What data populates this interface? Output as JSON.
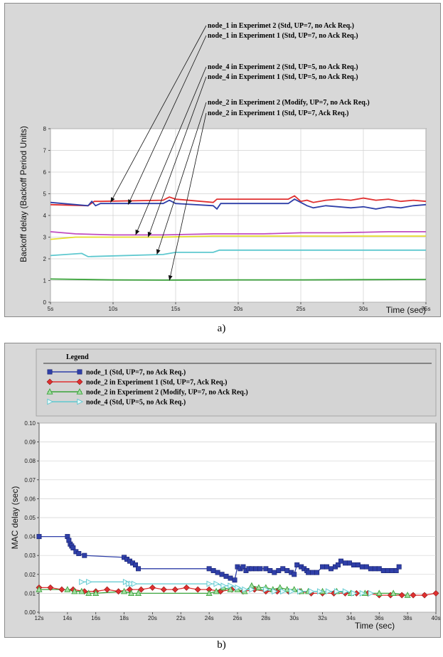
{
  "captions": {
    "a": "a)",
    "b": "b)"
  },
  "colors": {
    "node1": "#2f3fa8",
    "node2_exp1": "#e03030",
    "node2_exp2": "#3aa33a",
    "node4": "#5ec8cf",
    "magenta": "#c04cc0",
    "yellow": "#e6dc2a",
    "green_line": "#3aa33a"
  },
  "chart_data": [
    {
      "type": "line",
      "xlabel": "Time  (sec)",
      "ylabel": "Backoff delay (Backoff Period Units)",
      "xlim": [
        5,
        35
      ],
      "ylim": [
        0,
        8
      ],
      "xticks": [
        "5s",
        "10s",
        "15s",
        "20s",
        "25s",
        "30s",
        "35s"
      ],
      "yticks": [
        "0",
        "1",
        "2",
        "3",
        "4",
        "5",
        "6",
        "7",
        "8"
      ],
      "grid": true,
      "annotations": [
        {
          "text": "node_1 in Experimet 2 (Std, UP=7, no Ack Req.)",
          "target": [
            9.8,
            4.6
          ]
        },
        {
          "text": "node_1 in Experiment 1 (Std, UP=7, no Ack Req.)",
          "target": [
            11.2,
            4.5
          ]
        },
        {
          "text": "node_4 in Experiment 2 (Std, UP=5, no Ack Req.)",
          "target": [
            11.8,
            3.1
          ]
        },
        {
          "text": "node_4 in Experiment 1 (Std, UP=5, no Ack Req.)",
          "target": [
            12.8,
            3.0
          ]
        },
        {
          "text": "node_2 in Experiment 2 (Modify, UP=7, no Ack Req.)",
          "target": [
            13.5,
            2.2
          ]
        },
        {
          "text": "node_2 in Experiment 1 (Std, UP=7, Ack Req.)",
          "target": [
            14.5,
            1.0
          ]
        }
      ],
      "series": [
        {
          "color": "#e03030",
          "x": [
            5,
            8,
            8.5,
            9,
            14,
            14.5,
            15,
            18,
            18.3,
            24,
            24.5,
            25,
            25.5,
            26,
            27,
            28,
            29,
            30,
            31,
            32,
            33,
            34,
            35
          ],
          "y": [
            4.5,
            4.45,
            4.65,
            4.65,
            4.7,
            4.85,
            4.75,
            4.6,
            4.75,
            4.75,
            4.9,
            4.65,
            4.7,
            4.6,
            4.7,
            4.75,
            4.7,
            4.8,
            4.7,
            4.75,
            4.65,
            4.7,
            4.65
          ]
        },
        {
          "color": "#2f3fa8",
          "x": [
            5,
            8,
            8.3,
            8.6,
            9,
            14,
            14.5,
            15,
            18,
            18.3,
            18.6,
            24,
            24.5,
            25,
            25.5,
            26,
            27,
            28,
            29,
            30,
            31,
            32,
            33,
            34,
            35
          ],
          "y": [
            4.6,
            4.45,
            4.65,
            4.45,
            4.55,
            4.55,
            4.7,
            4.55,
            4.45,
            4.3,
            4.55,
            4.55,
            4.75,
            4.6,
            4.45,
            4.35,
            4.45,
            4.4,
            4.35,
            4.4,
            4.3,
            4.4,
            4.35,
            4.45,
            4.5
          ]
        },
        {
          "color": "#c04cc0",
          "x": [
            5,
            7,
            10,
            14,
            18,
            22,
            25,
            28,
            32,
            35
          ],
          "y": [
            3.25,
            3.15,
            3.1,
            3.1,
            3.15,
            3.15,
            3.2,
            3.2,
            3.25,
            3.25
          ]
        },
        {
          "color": "#e6dc2a",
          "x": [
            5,
            7,
            10,
            14,
            18,
            22,
            25,
            30,
            35
          ],
          "y": [
            2.9,
            3.0,
            3.0,
            3.0,
            3.05,
            3.05,
            3.05,
            3.05,
            3.05
          ]
        },
        {
          "color": "#5ec8cf",
          "x": [
            5,
            7.5,
            8,
            14,
            15,
            18,
            18.5,
            35
          ],
          "y": [
            2.15,
            2.25,
            2.1,
            2.2,
            2.3,
            2.3,
            2.4,
            2.4
          ]
        },
        {
          "color": "#3aa33a",
          "x": [
            5,
            10,
            14,
            20,
            25,
            30,
            35
          ],
          "y": [
            1.07,
            1.03,
            1.02,
            1.03,
            1.03,
            1.04,
            1.05
          ]
        }
      ]
    },
    {
      "type": "line",
      "xlabel": "Time  (sec)",
      "ylabel": "MAC delay (sec)",
      "xlim": [
        12,
        40
      ],
      "ylim": [
        0,
        0.1
      ],
      "xticks": [
        "12s",
        "14s",
        "16s",
        "18s",
        "20s",
        "22s",
        "24s",
        "26s",
        "28s",
        "30s",
        "32s",
        "34s",
        "36s",
        "38s",
        "40s"
      ],
      "yticks": [
        "0.00",
        "0.01",
        "0.02",
        "0.03",
        "0.04",
        "0.05",
        "0.06",
        "0.07",
        "0.08",
        "0.09",
        "0.10"
      ],
      "grid": true,
      "legend": {
        "title": "Legend",
        "placement": "top",
        "entries": [
          "node_1 (Std, UP=7, no Ack Req.)",
          "node_2 in Experiment 1 (Std, UP=7, Ack Req.)",
          "node_2 in Experiment 2 (Modify, UP=7, no Ack Req.)",
          "node_4 (Std, UP=5, no Ack Req.)"
        ]
      },
      "series": [
        {
          "name": "node_1 (Std, UP=7, no Ack Req.)",
          "color": "#2f3fa8",
          "marker": "square",
          "x": [
            12,
            14,
            14.1,
            14.2,
            14.3,
            14.4,
            14.6,
            14.8,
            15.2,
            18,
            18.2,
            18.4,
            18.6,
            18.8,
            19,
            24,
            24.3,
            24.6,
            24.9,
            25.2,
            25.5,
            25.8,
            26,
            26.2,
            26.4,
            26.6,
            26.8,
            27,
            27.3,
            27.6,
            28,
            28.3,
            28.6,
            28.9,
            29.2,
            29.5,
            29.8,
            30,
            30.2,
            30.5,
            30.7,
            30.9,
            31,
            31.3,
            31.6,
            32,
            32.3,
            32.6,
            32.9,
            33.1,
            33.3,
            33.6,
            33.9,
            34.2,
            34.5,
            34.8,
            35.1,
            35.4,
            35.7,
            36,
            36.3,
            36.6,
            36.9,
            37.2,
            37.4
          ],
          "y": [
            0.04,
            0.04,
            0.038,
            0.036,
            0.035,
            0.034,
            0.032,
            0.031,
            0.03,
            0.029,
            0.028,
            0.027,
            0.026,
            0.025,
            0.023,
            0.023,
            0.022,
            0.021,
            0.02,
            0.019,
            0.018,
            0.017,
            0.024,
            0.023,
            0.024,
            0.022,
            0.023,
            0.023,
            0.023,
            0.023,
            0.023,
            0.022,
            0.021,
            0.022,
            0.023,
            0.022,
            0.021,
            0.02,
            0.025,
            0.024,
            0.023,
            0.022,
            0.021,
            0.021,
            0.021,
            0.024,
            0.024,
            0.023,
            0.024,
            0.025,
            0.027,
            0.026,
            0.026,
            0.025,
            0.025,
            0.024,
            0.024,
            0.023,
            0.023,
            0.023,
            0.022,
            0.022,
            0.022,
            0.022,
            0.024
          ]
        },
        {
          "name": "node_2 in Experiment 1 (Std, UP=7, Ack Req.)",
          "color": "#e03030",
          "marker": "diamond",
          "x": [
            12,
            12.8,
            13.6,
            14.4,
            15.2,
            16,
            16.8,
            17.6,
            18.4,
            19.2,
            20,
            20.8,
            21.6,
            22.4,
            23.2,
            24,
            24.8,
            25.6,
            26.4,
            27.2,
            28,
            28.8,
            29.6,
            30.4,
            31.2,
            32,
            32.8,
            33.6,
            34.4,
            35.2,
            36,
            36.8,
            37.6,
            38.4,
            39.2,
            40
          ],
          "y": [
            0.013,
            0.013,
            0.012,
            0.012,
            0.011,
            0.011,
            0.012,
            0.011,
            0.012,
            0.012,
            0.013,
            0.012,
            0.012,
            0.013,
            0.012,
            0.012,
            0.011,
            0.012,
            0.011,
            0.012,
            0.011,
            0.011,
            0.011,
            0.011,
            0.01,
            0.01,
            0.01,
            0.01,
            0.01,
            0.01,
            0.009,
            0.009,
            0.009,
            0.009,
            0.009,
            0.01
          ]
        },
        {
          "name": "node_2 in Experiment 2 (Modify, UP=7, no Ack Req.)",
          "color": "#3aa33a",
          "marker": "triangle-up",
          "x": [
            12,
            14,
            14.5,
            15,
            15.5,
            16,
            18,
            18.5,
            19,
            24,
            24.5,
            25,
            25.5,
            26,
            26.5,
            27,
            27.5,
            28,
            28.5,
            29,
            29.5,
            30,
            30.5,
            31,
            32,
            33,
            34,
            35,
            36,
            37,
            38
          ],
          "y": [
            0.012,
            0.012,
            0.011,
            0.011,
            0.01,
            0.01,
            0.011,
            0.01,
            0.01,
            0.01,
            0.011,
            0.013,
            0.012,
            0.012,
            0.011,
            0.014,
            0.013,
            0.013,
            0.012,
            0.013,
            0.012,
            0.012,
            0.011,
            0.011,
            0.011,
            0.011,
            0.01,
            0.01,
            0.01,
            0.01,
            0.009
          ]
        },
        {
          "name": "node_4 (Std, UP=5, no Ack Req.)",
          "color": "#5ec8cf",
          "marker": "triangle-right",
          "x": [
            15,
            15.5,
            18.1,
            18.3,
            18.5,
            18.7,
            24,
            24.5,
            25,
            25.5,
            26,
            26.5,
            27,
            28,
            28.6,
            29.2,
            29.8,
            30.4,
            31.2,
            31.8,
            32.4,
            33,
            33.6,
            34.2,
            34.8,
            35.4
          ],
          "y": [
            0.016,
            0.016,
            0.016,
            0.015,
            0.015,
            0.015,
            0.015,
            0.015,
            0.014,
            0.014,
            0.013,
            0.012,
            0.012,
            0.012,
            0.011,
            0.011,
            0.011,
            0.011,
            0.011,
            0.011,
            0.011,
            0.011,
            0.011,
            0.01,
            0.01,
            0.01
          ]
        }
      ]
    }
  ]
}
